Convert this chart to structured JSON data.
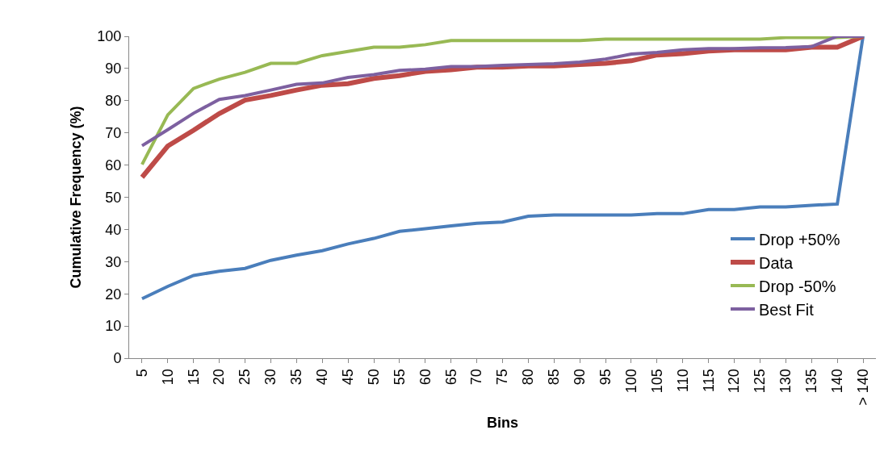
{
  "chart_data": {
    "type": "line",
    "xlabel": "Bins",
    "ylabel": "Cumulative Frequency (%)",
    "categories": [
      "5",
      "10",
      "15",
      "20",
      "25",
      "30",
      "35",
      "40",
      "45",
      "50",
      "55",
      "60",
      "65",
      "70",
      "75",
      "80",
      "85",
      "90",
      "95",
      "100",
      "105",
      "110",
      "115",
      "120",
      "125",
      "130",
      "135",
      "140",
      "> 140"
    ],
    "series": [
      {
        "name": "Drop +50%",
        "color": "#4a7ebb",
        "values": [
          18.5,
          22.3,
          25.7,
          27,
          27.9,
          30.4,
          32,
          33.4,
          35.5,
          37.2,
          39.4,
          40.2,
          41.1,
          41.9,
          42.3,
          44.1,
          44.5,
          44.5,
          44.5,
          44.5,
          44.9,
          44.9,
          46.2,
          46.2,
          47,
          47,
          47.5,
          47.9,
          100
        ]
      },
      {
        "name": "Data",
        "color": "#be4b48",
        "values": [
          56.2,
          65.9,
          70.8,
          76,
          80.2,
          81.6,
          83.3,
          84.8,
          85.3,
          86.9,
          87.8,
          89.1,
          89.6,
          90.4,
          90.4,
          90.8,
          90.8,
          91.2,
          91.6,
          92.4,
          94.2,
          94.6,
          95.4,
          95.8,
          95.8,
          95.8,
          96.6,
          96.6,
          100
        ]
      },
      {
        "name": "Drop -50%",
        "color": "#98b954",
        "values": [
          60.2,
          75.6,
          83.8,
          86.7,
          88.8,
          91.6,
          91.6,
          94,
          95.3,
          96.6,
          96.6,
          97.4,
          98.7,
          98.7,
          98.7,
          98.7,
          98.7,
          98.7,
          99.1,
          99.1,
          99.1,
          99.1,
          99.1,
          99.1,
          99.1,
          99.6,
          99.6,
          99.6,
          100
        ]
      },
      {
        "name": "Best Fit",
        "color": "#7d60a0",
        "values": [
          66,
          71,
          76.1,
          80.4,
          81.6,
          83.3,
          85.1,
          85.5,
          87.2,
          88.1,
          89.4,
          89.8,
          90.6,
          90.6,
          91,
          91.2,
          91.5,
          92,
          92.9,
          94.5,
          95,
          95.8,
          96.2,
          96.2,
          96.4,
          96.5,
          96.8,
          100,
          100
        ]
      }
    ],
    "ylim": [
      0,
      100
    ],
    "yticks": [
      0,
      10,
      20,
      30,
      40,
      50,
      60,
      70,
      80,
      90,
      100
    ],
    "legend": "right",
    "marker": "none",
    "line_style": "solid"
  }
}
